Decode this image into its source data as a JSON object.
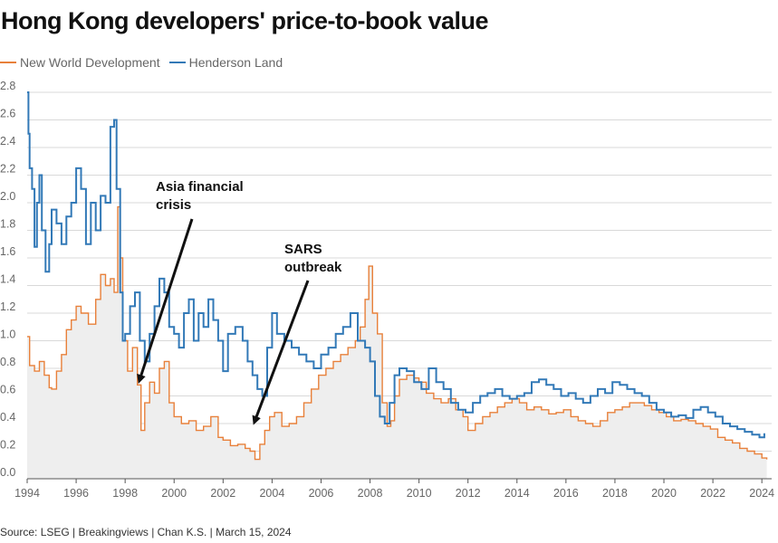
{
  "chart_data": {
    "type": "line",
    "title": "Hong Kong developers' price-to-book value",
    "xlabel": "",
    "ylabel": "",
    "xlim": [
      1994,
      2024.4
    ],
    "ylim": [
      0,
      2.8
    ],
    "xticks": [
      "1994",
      "1996",
      "1998",
      "2000",
      "2002",
      "2004",
      "2006",
      "2008",
      "2010",
      "2012",
      "2014",
      "2016",
      "2018",
      "2020",
      "2022",
      "2024"
    ],
    "yticks": [
      "0.0",
      "0.2",
      "0.4",
      "0.6",
      "0.8",
      "1.0",
      "1.2",
      "1.4",
      "1.6",
      "1.8",
      "2.0",
      "2.2",
      "2.4",
      "2.6",
      "2.8"
    ],
    "grid": true,
    "legend_position": "top-left",
    "series": [
      {
        "name": "New World Development",
        "color": "#e8803a",
        "fill": "#eeeeee",
        "x": [
          1994.0,
          1994.1,
          1994.3,
          1994.5,
          1994.7,
          1994.9,
          1995.0,
          1995.2,
          1995.4,
          1995.6,
          1995.8,
          1996.0,
          1996.2,
          1996.5,
          1996.8,
          1997.0,
          1997.2,
          1997.4,
          1997.55,
          1997.7,
          1997.8,
          1997.9,
          1998.1,
          1998.3,
          1998.5,
          1998.65,
          1998.8,
          1999.0,
          1999.2,
          1999.4,
          1999.6,
          1999.8,
          2000.0,
          2000.3,
          2000.6,
          2000.9,
          2001.2,
          2001.5,
          2001.8,
          2002.0,
          2002.3,
          2002.6,
          2002.9,
          2003.1,
          2003.3,
          2003.5,
          2003.7,
          2003.9,
          2004.1,
          2004.4,
          2004.7,
          2005.0,
          2005.3,
          2005.6,
          2005.9,
          2006.2,
          2006.5,
          2006.8,
          2007.1,
          2007.4,
          2007.6,
          2007.8,
          2007.95,
          2008.1,
          2008.3,
          2008.5,
          2008.7,
          2008.85,
          2009.0,
          2009.2,
          2009.5,
          2009.8,
          2010.0,
          2010.3,
          2010.6,
          2010.9,
          2011.2,
          2011.5,
          2011.8,
          2012.0,
          2012.3,
          2012.6,
          2012.9,
          2013.2,
          2013.5,
          2013.8,
          2014.1,
          2014.4,
          2014.7,
          2015.0,
          2015.3,
          2015.6,
          2015.9,
          2016.2,
          2016.5,
          2016.8,
          2017.1,
          2017.4,
          2017.7,
          2018.0,
          2018.3,
          2018.6,
          2018.9,
          2019.2,
          2019.5,
          2019.8,
          2020.1,
          2020.4,
          2020.7,
          2021.0,
          2021.3,
          2021.6,
          2021.9,
          2022.2,
          2022.5,
          2022.8,
          2023.1,
          2023.4,
          2023.7,
          2024.0,
          2024.2
        ],
        "values": [
          1.03,
          0.82,
          0.78,
          0.85,
          0.75,
          0.66,
          0.65,
          0.78,
          0.9,
          1.08,
          1.15,
          1.25,
          1.2,
          1.12,
          1.3,
          1.48,
          1.4,
          1.45,
          1.35,
          1.97,
          1.6,
          1.0,
          0.78,
          0.95,
          0.68,
          0.35,
          0.55,
          0.7,
          0.62,
          0.8,
          0.85,
          0.55,
          0.45,
          0.4,
          0.42,
          0.35,
          0.38,
          0.45,
          0.3,
          0.28,
          0.24,
          0.25,
          0.22,
          0.2,
          0.14,
          0.25,
          0.35,
          0.45,
          0.48,
          0.38,
          0.4,
          0.45,
          0.55,
          0.65,
          0.75,
          0.8,
          0.85,
          0.9,
          0.95,
          1.0,
          1.1,
          1.3,
          1.54,
          1.2,
          1.05,
          0.55,
          0.38,
          0.42,
          0.6,
          0.72,
          0.75,
          0.73,
          0.7,
          0.62,
          0.58,
          0.55,
          0.58,
          0.5,
          0.45,
          0.35,
          0.4,
          0.45,
          0.48,
          0.52,
          0.55,
          0.58,
          0.55,
          0.5,
          0.52,
          0.5,
          0.47,
          0.48,
          0.5,
          0.45,
          0.42,
          0.4,
          0.38,
          0.42,
          0.48,
          0.5,
          0.52,
          0.55,
          0.55,
          0.53,
          0.5,
          0.48,
          0.45,
          0.42,
          0.43,
          0.42,
          0.4,
          0.38,
          0.36,
          0.3,
          0.28,
          0.26,
          0.22,
          0.2,
          0.18,
          0.15,
          0.14
        ]
      },
      {
        "name": "Henderson Land",
        "color": "#3279b7",
        "x": [
          1994.0,
          1994.05,
          1994.1,
          1994.2,
          1994.3,
          1994.4,
          1994.5,
          1994.6,
          1994.75,
          1994.9,
          1995.0,
          1995.2,
          1995.4,
          1995.6,
          1995.8,
          1996.0,
          1996.2,
          1996.4,
          1996.6,
          1996.8,
          1997.0,
          1997.2,
          1997.4,
          1997.55,
          1997.65,
          1997.8,
          1997.9,
          1998.0,
          1998.2,
          1998.4,
          1998.6,
          1998.8,
          1999.0,
          1999.2,
          1999.4,
          1999.6,
          1999.8,
          2000.0,
          2000.2,
          2000.4,
          2000.6,
          2000.8,
          2001.0,
          2001.2,
          2001.4,
          2001.6,
          2001.8,
          2002.0,
          2002.2,
          2002.5,
          2002.8,
          2003.0,
          2003.2,
          2003.4,
          2003.6,
          2003.8,
          2004.0,
          2004.2,
          2004.5,
          2004.8,
          2005.1,
          2005.4,
          2005.7,
          2006.0,
          2006.3,
          2006.6,
          2006.9,
          2007.2,
          2007.5,
          2007.8,
          2008.0,
          2008.2,
          2008.4,
          2008.6,
          2008.8,
          2009.0,
          2009.2,
          2009.5,
          2009.8,
          2010.1,
          2010.4,
          2010.7,
          2011.0,
          2011.3,
          2011.6,
          2011.9,
          2012.2,
          2012.5,
          2012.8,
          2013.1,
          2013.4,
          2013.7,
          2014.0,
          2014.3,
          2014.6,
          2014.9,
          2015.2,
          2015.5,
          2015.8,
          2016.1,
          2016.4,
          2016.7,
          2017.0,
          2017.3,
          2017.6,
          2017.9,
          2018.2,
          2018.5,
          2018.8,
          2019.1,
          2019.4,
          2019.7,
          2020.0,
          2020.3,
          2020.6,
          2020.9,
          2021.2,
          2021.5,
          2021.8,
          2022.1,
          2022.4,
          2022.7,
          2023.0,
          2023.3,
          2023.6,
          2023.9,
          2024.1
        ],
        "values": [
          2.8,
          2.5,
          2.25,
          2.1,
          1.68,
          2.0,
          2.2,
          1.8,
          1.5,
          1.7,
          1.95,
          1.85,
          1.7,
          1.9,
          2.0,
          2.25,
          2.1,
          1.7,
          2.0,
          1.8,
          2.05,
          2.0,
          2.55,
          2.6,
          2.1,
          1.35,
          1.0,
          1.05,
          1.25,
          1.35,
          1.0,
          0.85,
          1.05,
          1.25,
          1.45,
          1.35,
          1.1,
          1.05,
          0.95,
          1.2,
          1.3,
          1.0,
          1.2,
          1.1,
          1.3,
          1.15,
          1.0,
          0.78,
          1.05,
          1.1,
          1.0,
          0.85,
          0.75,
          0.65,
          0.6,
          0.95,
          1.2,
          1.05,
          1.0,
          0.95,
          0.9,
          0.85,
          0.8,
          0.9,
          0.95,
          1.05,
          1.1,
          1.2,
          1.0,
          0.95,
          0.85,
          0.6,
          0.45,
          0.4,
          0.55,
          0.75,
          0.8,
          0.78,
          0.7,
          0.65,
          0.8,
          0.7,
          0.65,
          0.55,
          0.5,
          0.48,
          0.55,
          0.6,
          0.62,
          0.65,
          0.6,
          0.58,
          0.6,
          0.62,
          0.7,
          0.72,
          0.68,
          0.65,
          0.6,
          0.62,
          0.58,
          0.55,
          0.6,
          0.65,
          0.62,
          0.7,
          0.68,
          0.65,
          0.62,
          0.6,
          0.55,
          0.5,
          0.48,
          0.45,
          0.46,
          0.44,
          0.5,
          0.52,
          0.48,
          0.45,
          0.4,
          0.38,
          0.36,
          0.34,
          0.32,
          0.3,
          0.33
        ]
      }
    ],
    "annotations": [
      {
        "lines": [
          "Asia financial",
          "crisis"
        ],
        "x": 1998.6,
        "y": 0.72
      },
      {
        "lines": [
          "SARS",
          "outbreak"
        ],
        "x": 2003.3,
        "y": 0.42
      }
    ],
    "source": "Source: LSEG | Breakingviews | Chan K.S. | March 15, 2024"
  }
}
